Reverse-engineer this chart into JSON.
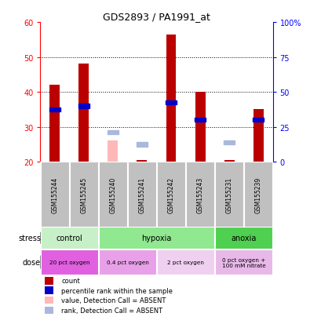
{
  "title": "GDS2893 / PA1991_at",
  "samples": [
    "GSM155244",
    "GSM155245",
    "GSM155240",
    "GSM155241",
    "GSM155242",
    "GSM155243",
    "GSM155231",
    "GSM155239"
  ],
  "count_values": [
    42,
    48,
    20.5,
    20.5,
    56.5,
    40,
    20.5,
    35
  ],
  "count_bottom": [
    20,
    20,
    20,
    20,
    20,
    20,
    20,
    20
  ],
  "percentile_values": [
    35,
    36,
    null,
    null,
    37,
    32,
    null,
    32
  ],
  "absent_bar_values": [
    null,
    null,
    26,
    null,
    null,
    null,
    null,
    null
  ],
  "absent_rank_values": [
    null,
    null,
    28.5,
    25,
    null,
    null,
    25.5,
    null
  ],
  "ylim_left": [
    20,
    60
  ],
  "ylim_right": [
    0,
    100
  ],
  "yticks_left": [
    20,
    30,
    40,
    50,
    60
  ],
  "yticks_right": [
    0,
    25,
    50,
    75,
    100
  ],
  "ytick_labels_right": [
    "0",
    "25",
    "50",
    "75",
    "100%"
  ],
  "stress_groups": [
    {
      "label": "control",
      "start": 0,
      "end": 2,
      "color": "#c8f0c8"
    },
    {
      "label": "hypoxia",
      "start": 2,
      "end": 6,
      "color": "#90e890"
    },
    {
      "label": "anoxia",
      "start": 6,
      "end": 8,
      "color": "#50d050"
    }
  ],
  "dose_groups": [
    {
      "label": "20 pct oxygen",
      "start": 0,
      "end": 2,
      "color": "#e060e0"
    },
    {
      "label": "0.4 pct oxygen",
      "start": 2,
      "end": 4,
      "color": "#e8a0e8"
    },
    {
      "label": "2 pct oxygen",
      "start": 4,
      "end": 6,
      "color": "#f0d0f0"
    },
    {
      "label": "0 pct oxygen +\n100 mM nitrate",
      "start": 6,
      "end": 8,
      "color": "#e8b8e8"
    }
  ],
  "count_color": "#bb0000",
  "percentile_color": "#0000cc",
  "absent_bar_color": "#ffb8b8",
  "absent_rank_color": "#aab8dd",
  "bar_width": 0.35,
  "sample_bg_color": "#c0c0c0",
  "legend_items": [
    {
      "color": "#bb0000",
      "label": "count"
    },
    {
      "color": "#0000cc",
      "label": "percentile rank within the sample"
    },
    {
      "color": "#ffb8b8",
      "label": "value, Detection Call = ABSENT"
    },
    {
      "color": "#aab8dd",
      "label": "rank, Detection Call = ABSENT"
    }
  ]
}
